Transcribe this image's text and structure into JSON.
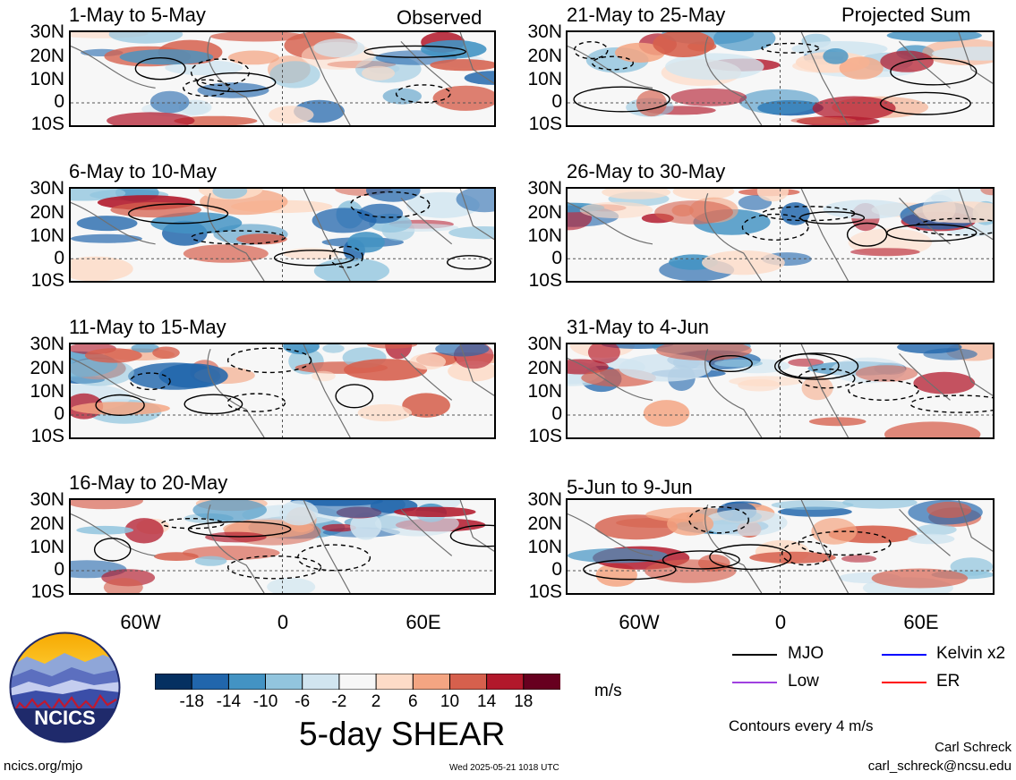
{
  "panel_headers": {
    "left": "Observed",
    "right": "Projected Sum"
  },
  "panels": [
    {
      "title": "1-May to 5-May"
    },
    {
      "title": "6-May to 10-May"
    },
    {
      "title": "11-May to 15-May"
    },
    {
      "title": "16-May to 20-May"
    },
    {
      "title": "21-May to 25-May"
    },
    {
      "title": "26-May to 30-May"
    },
    {
      "title": "31-May to 4-Jun"
    },
    {
      "title": "5-Jun to 9-Jun"
    }
  ],
  "lat_labels": [
    "30N",
    "20N",
    "10N",
    "0",
    "10S"
  ],
  "lon_labels": [
    "60W",
    "0",
    "60E"
  ],
  "colorbar": {
    "ticks": [
      "-18",
      "-14",
      "-10",
      "-6",
      "-2",
      "2",
      "6",
      "10",
      "14",
      "18"
    ],
    "colors": [
      "#053061",
      "#2166ac",
      "#4393c3",
      "#92c5de",
      "#d1e5f0",
      "#f7f7f7",
      "#fddbc7",
      "#f4a582",
      "#d6604d",
      "#b2182b",
      "#67001f"
    ],
    "units": "m/s",
    "title": "5-day SHEAR"
  },
  "legend": {
    "items": [
      {
        "label": "MJO",
        "color": "#000000"
      },
      {
        "label": "Kelvin x2",
        "color": "#0000ff"
      },
      {
        "label": "Low",
        "color": "#a040e0"
      },
      {
        "label": "ER",
        "color": "#ff0000"
      }
    ],
    "contour_note": "Contours every 4 m/s"
  },
  "credits": {
    "site": "ncics.org/mjo",
    "timestamp": "Wed 2025-05-21 1018 UTC",
    "author": "Carl Schreck",
    "email": "carl_schreck@ncsu.edu",
    "logo_text": "NCICS"
  }
}
